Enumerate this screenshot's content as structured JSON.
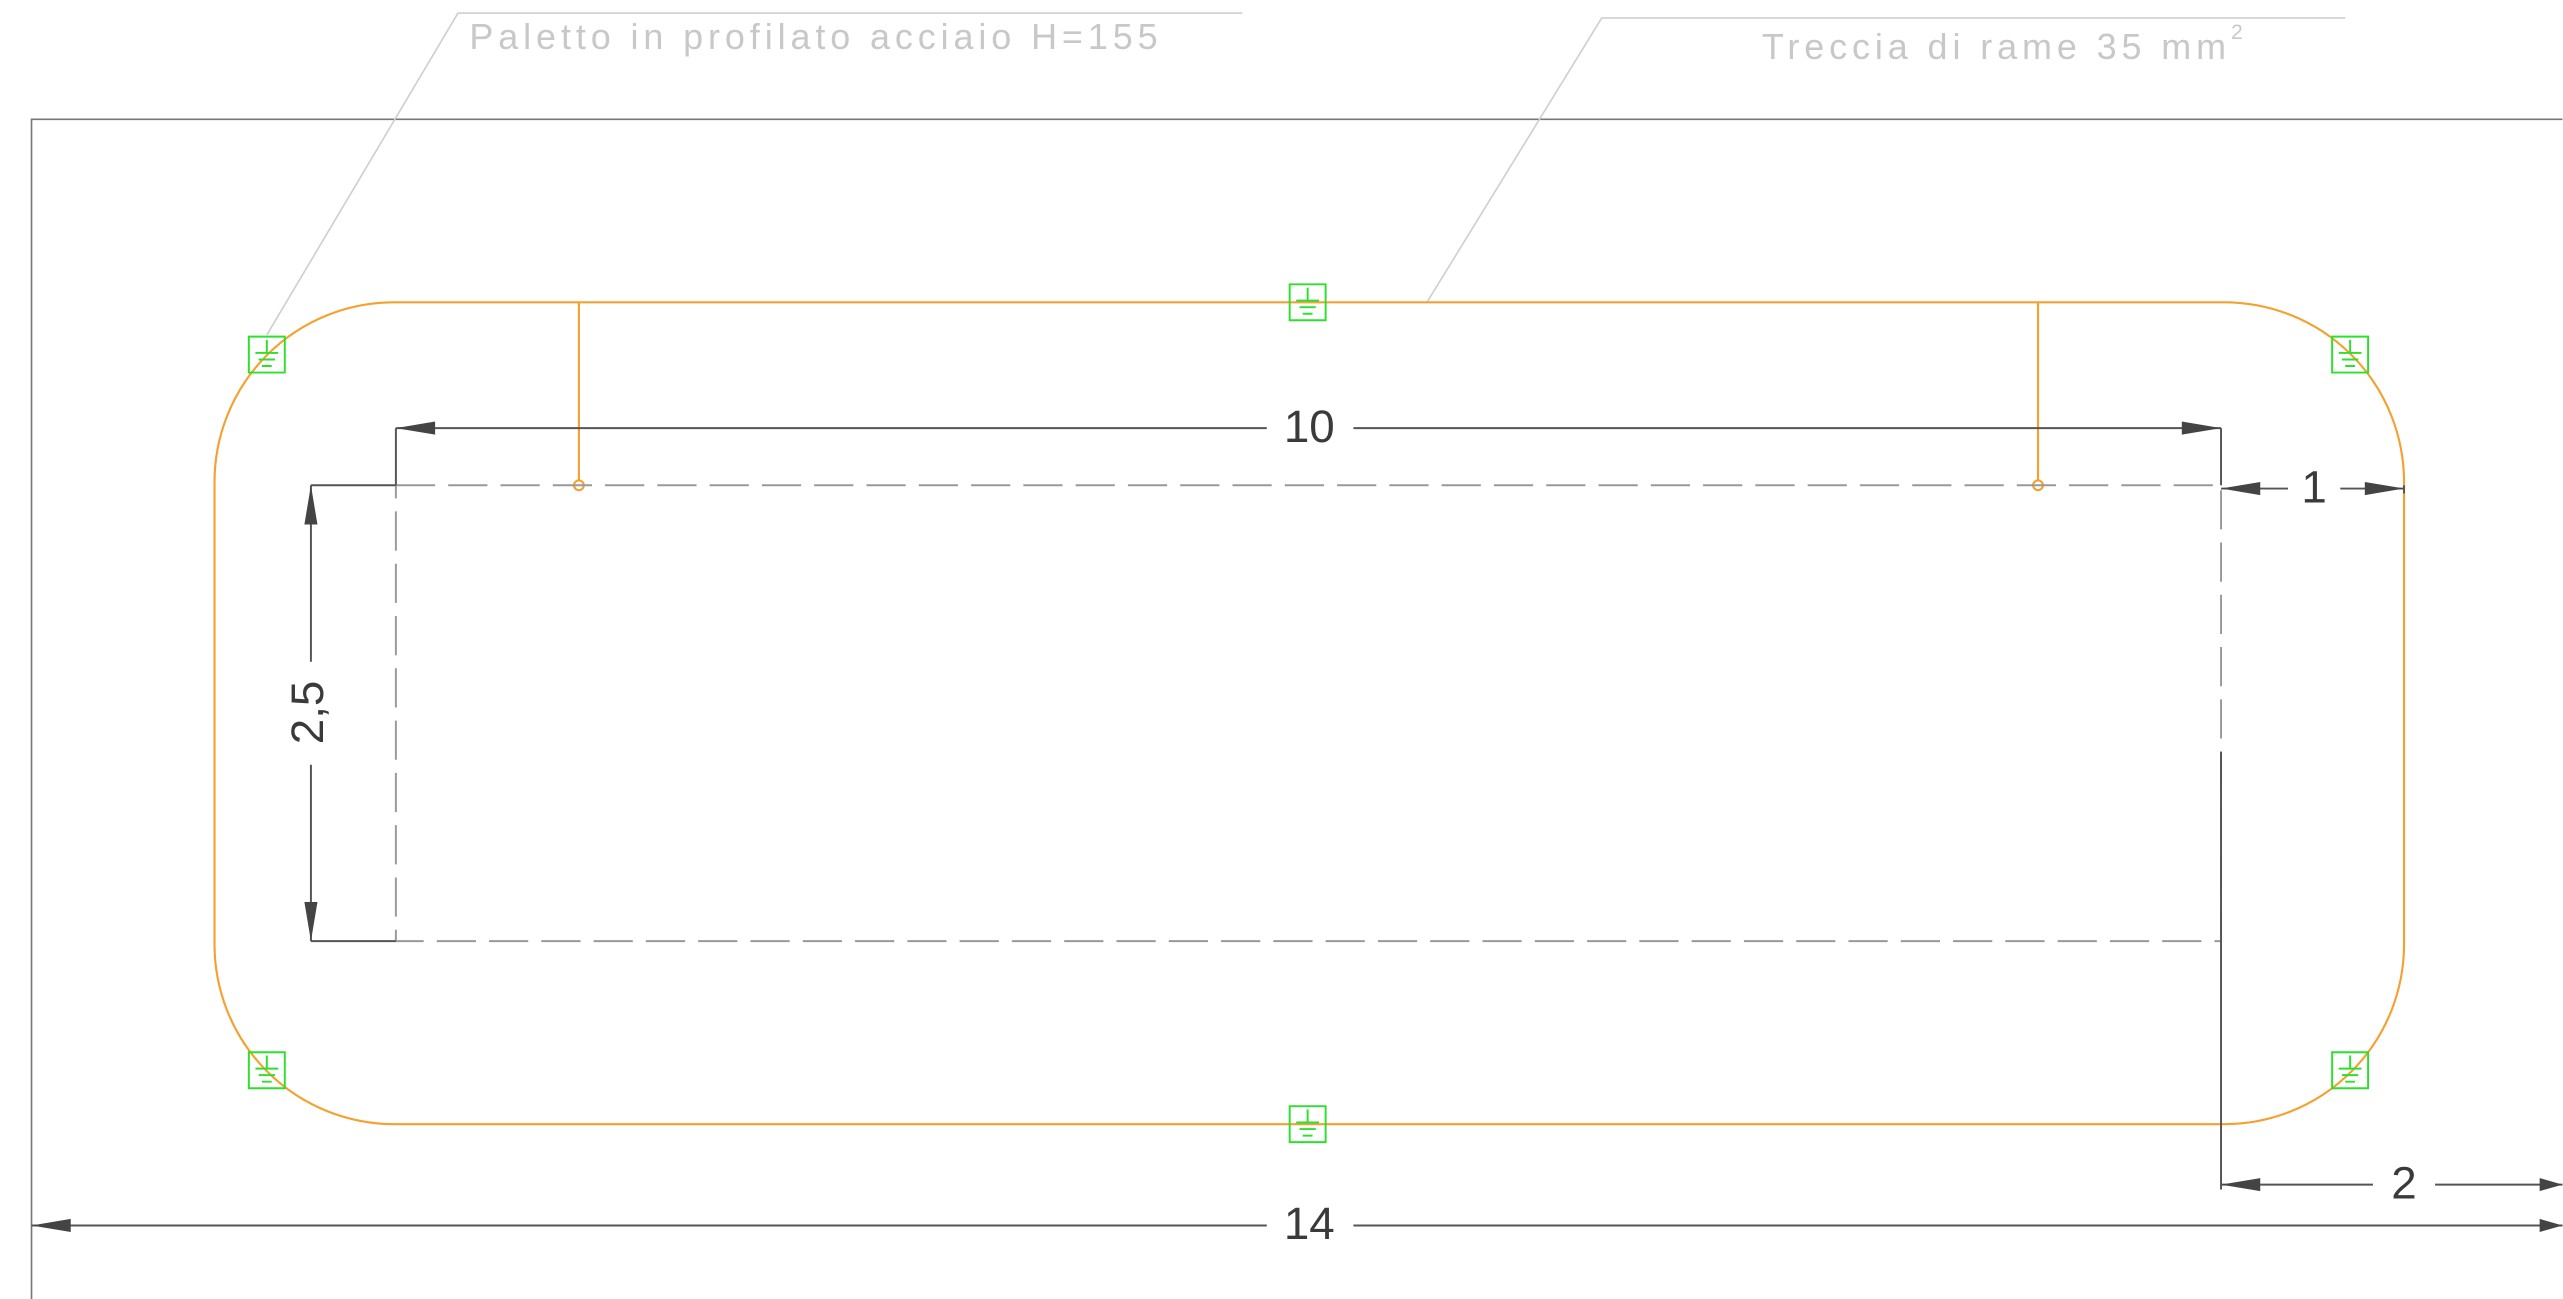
{
  "notes": [
    "Paletto in profilato acciaio H=155",
    {
      "text": "Treccia di rame 35 mm",
      "sup": "2"
    }
  ],
  "dimensions": [
    "10",
    "1",
    "2,5",
    "2",
    "14"
  ]
}
